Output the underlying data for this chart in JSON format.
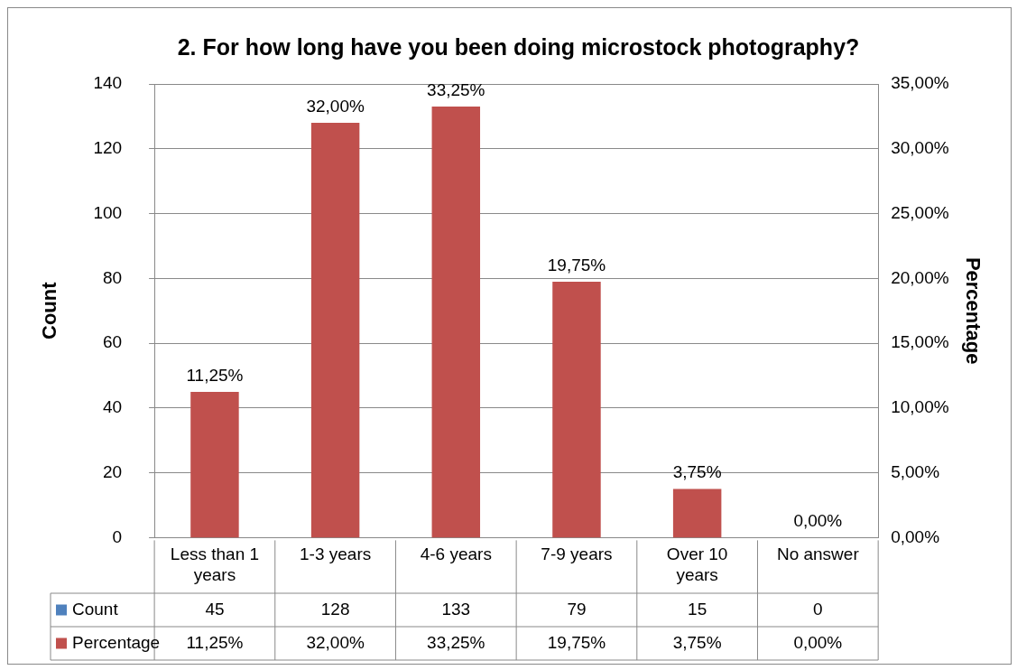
{
  "chart_data": {
    "type": "bar",
    "title": "2. For how long have you been doing microstock photography?",
    "ylabel": "Count",
    "y2label": "Percentage",
    "categories": [
      "Less than 1 years",
      "1-3 years",
      "4-6 years",
      "7-9 years",
      "Over 10 years",
      "No answer"
    ],
    "series": [
      {
        "name": "Count",
        "color": "#4f81bd",
        "values": [
          null,
          null,
          null,
          null,
          null,
          null
        ],
        "value_labels": [
          "45",
          "128",
          "133",
          "79",
          "15",
          "0"
        ]
      },
      {
        "name": "Percentage",
        "color": "#c0504d",
        "axis": "y2",
        "values": [
          11.25,
          32.0,
          33.25,
          19.75,
          3.75,
          0.0
        ],
        "value_labels": [
          "11,25%",
          "32,00%",
          "33,25%",
          "19,75%",
          "3,75%",
          "0,00%"
        ]
      }
    ],
    "ylim": [
      0,
      140
    ],
    "yticks": [
      0,
      20,
      40,
      60,
      80,
      100,
      120,
      140
    ],
    "y2lim": [
      0,
      35
    ],
    "y2ticks": [
      {
        "value": 0,
        "label": "0,00%"
      },
      {
        "value": 5,
        "label": "5,00%"
      },
      {
        "value": 10,
        "label": "10,00%"
      },
      {
        "value": 15,
        "label": "15,00%"
      },
      {
        "value": 20,
        "label": "20,00%"
      },
      {
        "value": 25,
        "label": "25,00%"
      },
      {
        "value": 30,
        "label": "30,00%"
      },
      {
        "value": 35,
        "label": "35,00%"
      }
    ],
    "grid": "y",
    "legend": "bottom"
  }
}
